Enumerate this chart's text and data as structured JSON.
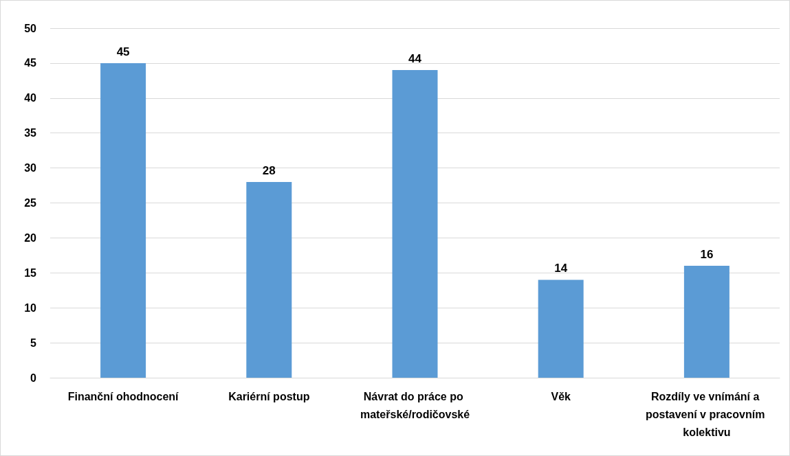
{
  "chart_data": {
    "type": "bar",
    "categories": [
      "Finanční ohodnocení",
      "Kariérní postup",
      "Návrat do práce po mateřské/rodičovské",
      "Věk",
      "Rozdíly ve vnímání a postavení v pracovním kolektivu"
    ],
    "values": [
      45,
      28,
      44,
      14,
      16
    ],
    "color": "#5b9bd5",
    "ylim": [
      0,
      50
    ],
    "yticks": [
      0,
      5,
      10,
      15,
      20,
      25,
      30,
      35,
      40,
      45,
      50
    ],
    "grid": "y",
    "data_labels": true
  }
}
